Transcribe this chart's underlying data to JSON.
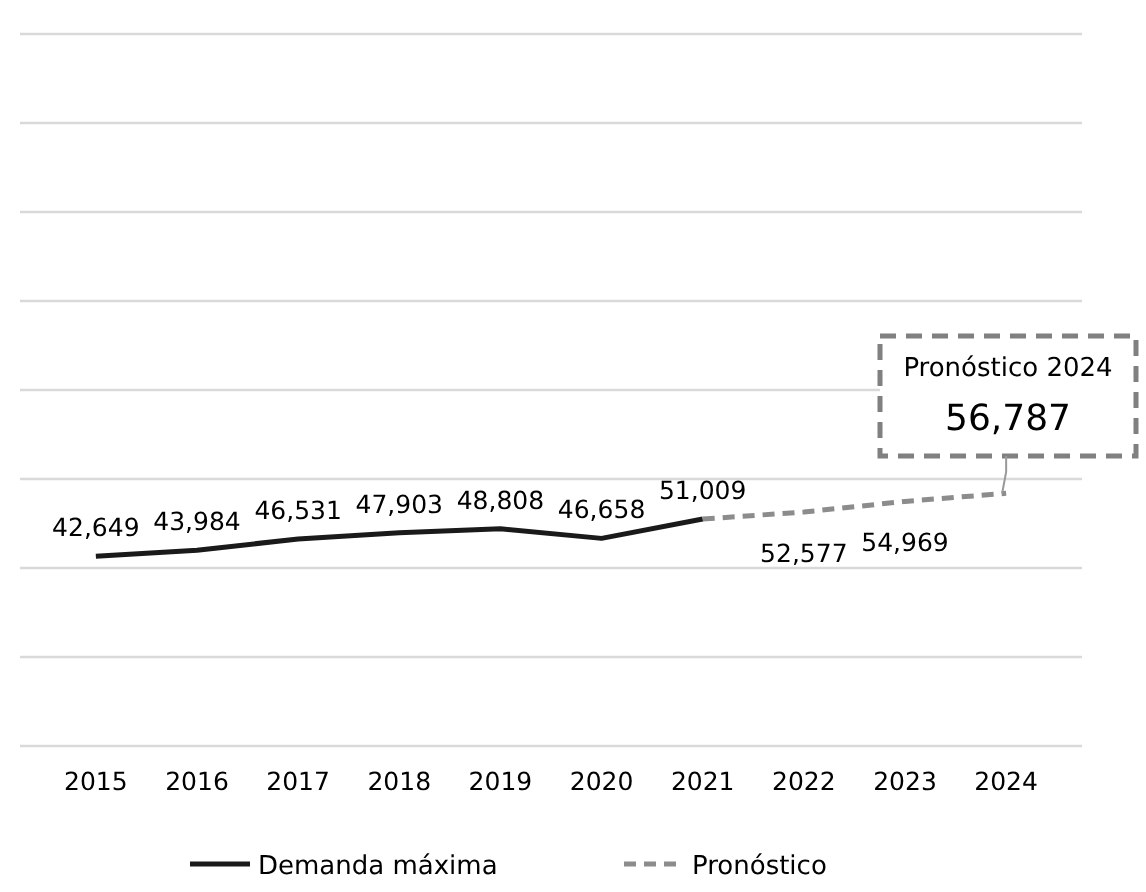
{
  "chart_data": {
    "type": "line",
    "categories": [
      "2015",
      "2016",
      "2017",
      "2018",
      "2019",
      "2020",
      "2021",
      "2022",
      "2023",
      "2024"
    ],
    "ylim": [
      0,
      160000
    ],
    "yticks": [
      {
        "value": 0,
        "label": null
      },
      {
        "value": 20000,
        "label": null
      },
      {
        "value": 40000,
        "label": null
      },
      {
        "value": 60000,
        "label": null
      },
      {
        "value": 80000,
        "label": null
      },
      {
        "value": 100000,
        "label": null
      },
      {
        "value": 120000,
        "label": null
      },
      {
        "value": 140000,
        "label": null
      },
      {
        "value": 160000,
        "label": null
      }
    ],
    "grid": "y",
    "legend": "bottom",
    "tick_labels": "x",
    "series": [
      {
        "name": "Demanda máxima",
        "color": "#1a1a1a",
        "line_style": "solid",
        "values": [
          42649,
          43984,
          46531,
          47903,
          48808,
          46658,
          51009,
          null,
          null,
          null
        ],
        "value_labels": [
          "42,649",
          "43,984",
          "46,531",
          "47,903",
          "48,808",
          "46,658",
          "51,009",
          null,
          null,
          null
        ]
      },
      {
        "name": "Pronóstico",
        "color": "#8c8c8c",
        "line_style": "dashed",
        "values": [
          null,
          null,
          null,
          null,
          null,
          null,
          51009,
          52577,
          54969,
          56787
        ],
        "value_labels": [
          null,
          null,
          null,
          null,
          null,
          null,
          null,
          "52,577",
          "54,969",
          "56,787"
        ]
      }
    ],
    "annotations": [
      "Pronóstico 2024"
    ]
  }
}
